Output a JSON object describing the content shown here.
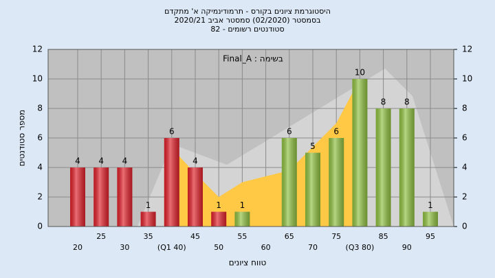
{
  "chart_data": {
    "type": "bar",
    "title_lines": [
      "היסטוגרמת ציונים בקורס - תרמודינמיקה א' מתקדם",
      "בסמסטר  (02/2020)  סמסטר אביב 2020/21",
      "סטודנטים רשומים - 82"
    ],
    "annotation": "Final_A : בשימה",
    "x_label": "טווח ציונים",
    "y_label": "מספר סטודנטים",
    "categories": [
      "20",
      "25",
      "30",
      "35",
      "(Q1 40)",
      "45",
      "50",
      "55",
      "60",
      "65",
      "70",
      "75",
      "(Q3 80)",
      "85",
      "90",
      "95"
    ],
    "values": [
      4,
      4,
      4,
      1,
      6,
      4,
      1,
      1,
      null,
      6,
      5,
      6,
      10,
      8,
      8,
      1
    ],
    "colors": [
      "#e0202a",
      "#e0202a",
      "#e0202a",
      "#e0202a",
      "#e0202a",
      "#e0202a",
      "#e0202a",
      "#8fc040",
      "#8fc040",
      "#8fc040",
      "#8fc040",
      "#8fc040",
      "#8fc040",
      "#8fc040",
      "#8fc040",
      "#8fc040"
    ],
    "area": {
      "color": "#ffc845",
      "values": [
        null,
        null,
        null,
        null,
        5.3,
        3.6,
        2,
        3,
        3.4,
        3.8,
        5.4,
        7,
        10,
        null,
        null,
        null
      ]
    },
    "ylim": [
      0,
      12
    ],
    "yticks": [
      0,
      2,
      4,
      6,
      8,
      10,
      12
    ],
    "y2lim": [
      0,
      12
    ],
    "y2ticks": [
      0,
      2,
      4,
      6,
      8,
      10,
      12
    ],
    "grid": true
  }
}
